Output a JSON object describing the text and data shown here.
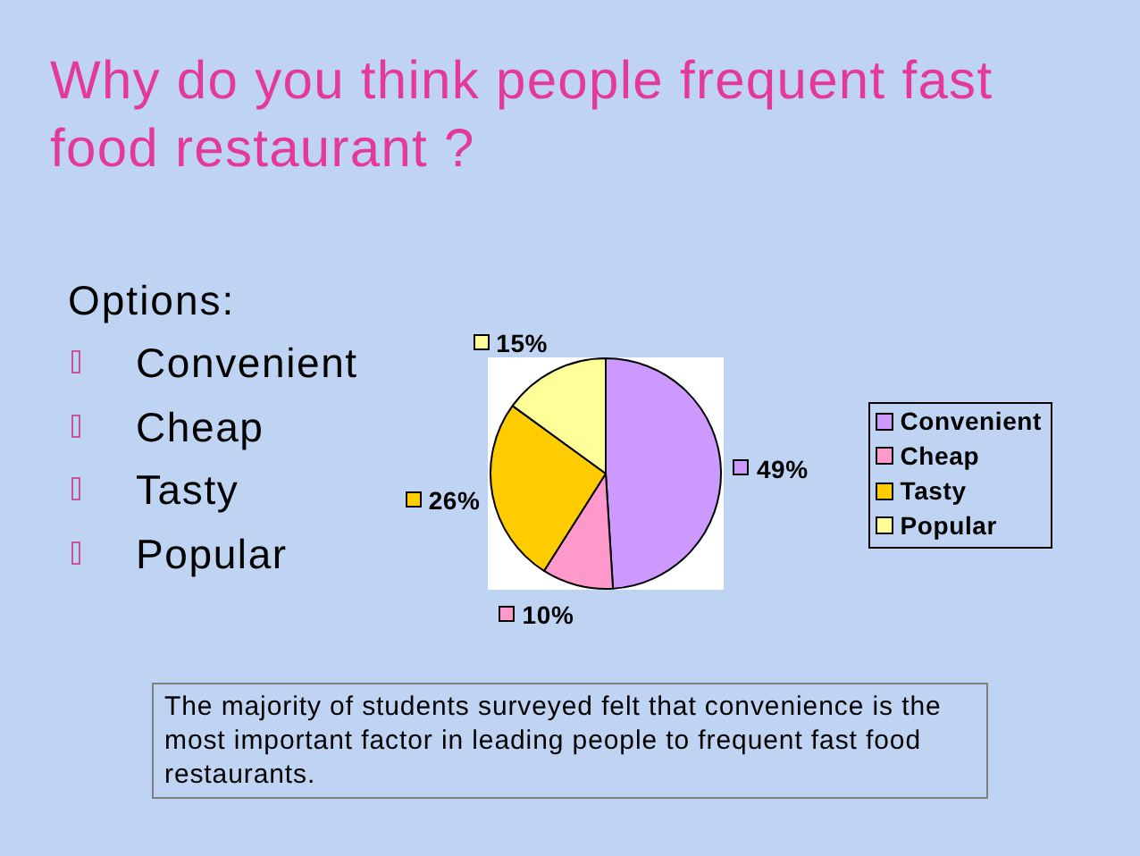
{
  "chart_data": {
    "type": "pie",
    "title": "Why do you think people frequent fast food restaurant ?",
    "categories": [
      "Convenient",
      "Cheap",
      "Tasty",
      "Popular"
    ],
    "values": [
      49,
      10,
      26,
      15
    ],
    "colors": [
      "#cc99ff",
      "#ff99cc",
      "#ffcc00",
      "#ffff99"
    ],
    "value_labels": [
      "49%",
      "10%",
      "26%",
      "15%"
    ],
    "legend": "right",
    "annotations": [
      "Options:",
      "The majority of students surveyed felt that convenience is the most important factor in leading people to frequent fast food restaurants."
    ]
  }
}
